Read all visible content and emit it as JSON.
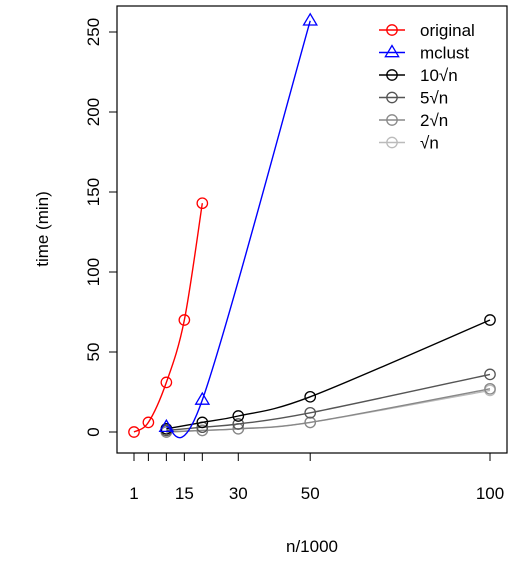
{
  "chart_data": {
    "type": "line",
    "title": "",
    "xlabel": "n/1000",
    "ylabel": "time (min)",
    "xlim": [
      1,
      100
    ],
    "ylim": [
      0,
      250
    ],
    "x_ticks": [
      1,
      5,
      10,
      15,
      20,
      30,
      50,
      100
    ],
    "x_tick_labels": [
      "1",
      "",
      "",
      "15",
      "",
      "30",
      "50",
      "100"
    ],
    "y_ticks": [
      0,
      50,
      100,
      150,
      200,
      250
    ],
    "y_tick_labels": [
      "0",
      "50",
      "100",
      "150",
      "200",
      "250"
    ],
    "grid": false,
    "legend_position": "top-right",
    "series": [
      {
        "name": "original",
        "color": "#ff0000",
        "marker": "circle",
        "points": [
          [
            1,
            0
          ],
          [
            5,
            6
          ],
          [
            10,
            31
          ],
          [
            15,
            70
          ],
          [
            20,
            143
          ]
        ]
      },
      {
        "name": "mclust",
        "color": "#0000ff",
        "marker": "triangle",
        "points": [
          [
            10,
            3
          ],
          [
            20,
            20
          ],
          [
            50,
            257
          ]
        ]
      },
      {
        "name": "10√n",
        "color": "#000000",
        "marker": "circle",
        "points": [
          [
            10,
            2
          ],
          [
            20,
            6
          ],
          [
            30,
            10
          ],
          [
            50,
            22
          ],
          [
            100,
            70
          ]
        ]
      },
      {
        "name": "5√n",
        "color": "#555555",
        "marker": "circle",
        "points": [
          [
            10,
            1
          ],
          [
            20,
            3
          ],
          [
            30,
            5
          ],
          [
            50,
            12
          ],
          [
            100,
            36
          ]
        ]
      },
      {
        "name": "2√n",
        "color": "#888888",
        "marker": "circle",
        "points": [
          [
            10,
            0
          ],
          [
            20,
            1
          ],
          [
            30,
            2
          ],
          [
            50,
            6
          ],
          [
            100,
            27
          ]
        ]
      },
      {
        "name": "√n",
        "color": "#bbbbbb",
        "marker": "circle",
        "points": [
          [
            10,
            0
          ],
          [
            20,
            1
          ],
          [
            30,
            2
          ],
          [
            50,
            6
          ],
          [
            100,
            26
          ]
        ]
      }
    ]
  }
}
